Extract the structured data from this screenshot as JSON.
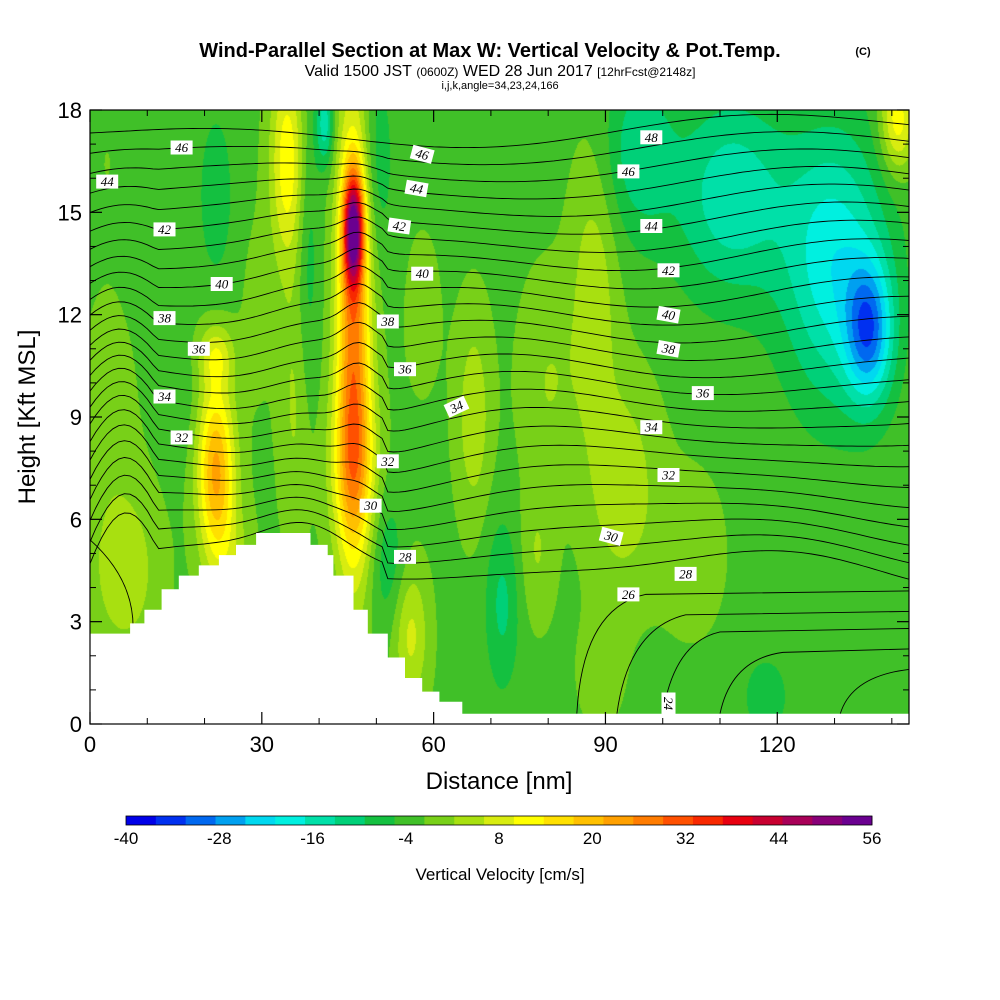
{
  "title": {
    "main": "Wind-Parallel Section at Max W: Vertical Velocity & Pot.Temp.",
    "copyright": "(C)",
    "valid_a": "Valid 1500 JST",
    "valid_b": "(0600Z)",
    "valid_c": "WED 28 Jun 2017",
    "valid_d": "[12hrFcst@2148z]",
    "grid_info": "i,j,k,angle=34,23,24,166"
  },
  "chart_data": {
    "type": "heatmap",
    "xlabel": "Distance [nm]",
    "ylabel": "Height [Kft MSL]",
    "xlim": [
      0,
      143
    ],
    "ylim": [
      0,
      18
    ],
    "x_ticks": [
      "0",
      "30",
      "60",
      "90",
      "120"
    ],
    "y_ticks": [
      "0",
      "3",
      "6",
      "9",
      "12",
      "15",
      "18"
    ],
    "colorbar": {
      "label": "Vertical Velocity [cm/s]",
      "ticks": [
        "-40",
        "-28",
        "-16",
        "-4",
        "8",
        "20",
        "32",
        "44",
        "56"
      ],
      "levels": [
        -40,
        -36,
        -32,
        -28,
        -24,
        -20,
        -16,
        -12,
        -8,
        -4,
        0,
        4,
        8,
        12,
        16,
        20,
        24,
        28,
        32,
        36,
        40,
        44,
        48,
        52,
        56
      ],
      "colors": [
        "#0000e8",
        "#0030f0",
        "#0068f0",
        "#00a0f0",
        "#00d8f0",
        "#00f0e0",
        "#00e0a8",
        "#00d078",
        "#14c040",
        "#40c028",
        "#78d018",
        "#a8e010",
        "#d8ec10",
        "#ffff00",
        "#ffe000",
        "#ffc000",
        "#ffa000",
        "#ff7c00",
        "#ff5000",
        "#f82800",
        "#e80010",
        "#c80030",
        "#a80058",
        "#880078",
        "#6a0090"
      ]
    },
    "w_cells": [
      {
        "x": 3,
        "z": 16.5,
        "sx": 6,
        "sz": 4,
        "w": 1
      },
      {
        "x": 3,
        "z": 9,
        "sx": 5,
        "sz": 3,
        "w": 3
      },
      {
        "x": 6,
        "z": 4.5,
        "sx": 6,
        "sz": 2.5,
        "w": 8
      },
      {
        "x": 14,
        "z": 15.5,
        "sx": 3,
        "sz": 4,
        "w": -2
      },
      {
        "x": 16,
        "z": 9.5,
        "sx": 3,
        "sz": 2,
        "w": -2
      },
      {
        "x": 22,
        "z": 7.4,
        "sx": 3.2,
        "sz": 2.6,
        "w": 26
      },
      {
        "x": 22,
        "z": 10.8,
        "sx": 3,
        "sz": 0.9,
        "w": 10
      },
      {
        "x": 22,
        "z": 15.5,
        "sx": 3,
        "sz": 2.5,
        "w": -6
      },
      {
        "x": 25,
        "z": 4.5,
        "sx": 3.5,
        "sz": 2,
        "w": 6
      },
      {
        "x": 29,
        "z": 12,
        "sx": 3,
        "sz": 3,
        "w": 2
      },
      {
        "x": 34.5,
        "z": 16.5,
        "sx": 3,
        "sz": 3,
        "w": 16
      },
      {
        "x": 36,
        "z": 9.5,
        "sx": 3,
        "sz": 4,
        "w": 6
      },
      {
        "x": 38,
        "z": 13.5,
        "sx": 2,
        "sz": 5,
        "w": -6
      },
      {
        "x": 41,
        "z": 17.6,
        "sx": 1.5,
        "sz": 1.2,
        "w": -14
      },
      {
        "x": 46,
        "z": 14.5,
        "sx": 1.7,
        "sz": 1.6,
        "w": 44
      },
      {
        "x": 46,
        "z": 11.5,
        "sx": 3,
        "sz": 6.5,
        "w": 30
      },
      {
        "x": 46,
        "z": 7.5,
        "sx": 4,
        "sz": 2.5,
        "w": 14
      },
      {
        "x": 52,
        "z": 4.8,
        "sx": 3,
        "sz": 2,
        "w": -6
      },
      {
        "x": 56,
        "z": 2.6,
        "sx": 3,
        "sz": 2,
        "w": 10
      },
      {
        "x": 50,
        "z": 16.5,
        "sx": 3,
        "sz": 3,
        "w": -6
      },
      {
        "x": 58,
        "z": 12,
        "sx": 4,
        "sz": 3,
        "w": 2
      },
      {
        "x": 67,
        "z": 9,
        "sx": 3,
        "sz": 3,
        "w": 8
      },
      {
        "x": 72,
        "z": 3.5,
        "sx": 3,
        "sz": 2.5,
        "w": -8
      },
      {
        "x": 80,
        "z": 10,
        "sx": 5,
        "sz": 3,
        "w": 5
      },
      {
        "x": 78,
        "z": 5,
        "sx": 3,
        "sz": 2,
        "w": 5
      },
      {
        "x": 88,
        "z": 12.5,
        "sx": 4,
        "sz": 4,
        "w": 8
      },
      {
        "x": 93,
        "z": 7,
        "sx": 6,
        "sz": 3,
        "w": 8
      },
      {
        "x": 89,
        "z": 1.5,
        "sx": 5,
        "sz": 2,
        "w": 2
      },
      {
        "x": 96,
        "z": 16.8,
        "sx": 6,
        "sz": 2.5,
        "w": -10
      },
      {
        "x": 112,
        "z": 15.5,
        "sx": 10,
        "sz": 3,
        "w": -14
      },
      {
        "x": 130,
        "z": 13.5,
        "sx": 9,
        "sz": 4,
        "w": -18
      },
      {
        "x": 136,
        "z": 11.5,
        "sx": 4,
        "sz": 2,
        "w": -24
      },
      {
        "x": 105,
        "z": 5,
        "sx": 6,
        "sz": 2.5,
        "w": 3
      },
      {
        "x": 118,
        "z": 0.8,
        "sx": 4,
        "sz": 1.2,
        "w": -6
      },
      {
        "x": 141,
        "z": 17.7,
        "sx": 3,
        "sz": 1.5,
        "w": 16
      }
    ],
    "w_background": -1,
    "terrain": [
      [
        0,
        2.65
      ],
      [
        7,
        2.65
      ],
      [
        7,
        2.95
      ],
      [
        9.5,
        2.95
      ],
      [
        9.5,
        3.35
      ],
      [
        12.5,
        3.35
      ],
      [
        12.5,
        3.95
      ],
      [
        15.5,
        3.95
      ],
      [
        15.5,
        4.35
      ],
      [
        19,
        4.35
      ],
      [
        19,
        4.65
      ],
      [
        22.5,
        4.65
      ],
      [
        22.5,
        4.95
      ],
      [
        25.5,
        4.95
      ],
      [
        25.5,
        5.25
      ],
      [
        29,
        5.25
      ],
      [
        29,
        5.6
      ],
      [
        38.5,
        5.6
      ],
      [
        38.5,
        5.25
      ],
      [
        41.5,
        5.25
      ],
      [
        41.5,
        4.95
      ],
      [
        42.5,
        4.95
      ],
      [
        42.5,
        4.35
      ],
      [
        46,
        4.35
      ],
      [
        46,
        3.35
      ],
      [
        48.5,
        3.35
      ],
      [
        48.5,
        2.65
      ],
      [
        52,
        2.65
      ],
      [
        52,
        1.95
      ],
      [
        55,
        1.95
      ],
      [
        55,
        1.35
      ],
      [
        58,
        1.35
      ],
      [
        58,
        0.95
      ],
      [
        61,
        0.95
      ],
      [
        61,
        0.65
      ],
      [
        65,
        0.65
      ],
      [
        65,
        0.3
      ],
      [
        143,
        0.3
      ]
    ],
    "theta_contours": {
      "levels": [
        24,
        25,
        26,
        27,
        28,
        29,
        30,
        31,
        32,
        33,
        34,
        35,
        36,
        37,
        38,
        39,
        40,
        41,
        42,
        43,
        44,
        45,
        46,
        47,
        48
      ],
      "labels": [
        {
          "text": "46",
          "x": 16,
          "z": 16.9,
          "angle": 0
        },
        {
          "text": "44",
          "x": 3,
          "z": 15.9,
          "angle": 0
        },
        {
          "text": "42",
          "x": 13,
          "z": 14.5,
          "angle": 0
        },
        {
          "text": "40",
          "x": 23,
          "z": 12.9,
          "angle": 0
        },
        {
          "text": "38",
          "x": 13,
          "z": 11.9,
          "angle": 0
        },
        {
          "text": "36",
          "x": 19,
          "z": 11.0,
          "angle": 0
        },
        {
          "text": "34",
          "x": 13,
          "z": 9.6,
          "angle": 0
        },
        {
          "text": "32",
          "x": 16,
          "z": 8.4,
          "angle": 0
        },
        {
          "text": "46",
          "x": 58,
          "z": 16.7,
          "angle": 15
        },
        {
          "text": "44",
          "x": 57,
          "z": 15.7,
          "angle": 10
        },
        {
          "text": "42",
          "x": 54,
          "z": 14.6,
          "angle": 8
        },
        {
          "text": "40",
          "x": 58,
          "z": 13.2,
          "angle": 0
        },
        {
          "text": "38",
          "x": 52,
          "z": 11.8,
          "angle": 0
        },
        {
          "text": "36",
          "x": 55,
          "z": 10.4,
          "angle": 0
        },
        {
          "text": "34",
          "x": 64,
          "z": 9.3,
          "angle": -25
        },
        {
          "text": "32",
          "x": 52,
          "z": 7.7,
          "angle": 0
        },
        {
          "text": "30",
          "x": 49,
          "z": 6.4,
          "angle": 0
        },
        {
          "text": "28",
          "x": 55,
          "z": 4.9,
          "angle": 0
        },
        {
          "text": "48",
          "x": 98,
          "z": 17.2,
          "angle": 0
        },
        {
          "text": "46",
          "x": 94,
          "z": 16.2,
          "angle": 0
        },
        {
          "text": "44",
          "x": 98,
          "z": 14.6,
          "angle": 0
        },
        {
          "text": "42",
          "x": 101,
          "z": 13.3,
          "angle": 0
        },
        {
          "text": "40",
          "x": 101,
          "z": 12.0,
          "angle": 10
        },
        {
          "text": "38",
          "x": 101,
          "z": 11.0,
          "angle": 10
        },
        {
          "text": "36",
          "x": 107,
          "z": 9.7,
          "angle": 0
        },
        {
          "text": "34",
          "x": 98,
          "z": 8.7,
          "angle": 0
        },
        {
          "text": "32",
          "x": 101,
          "z": 7.3,
          "angle": 0
        },
        {
          "text": "30",
          "x": 91,
          "z": 5.5,
          "angle": 15
        },
        {
          "text": "28",
          "x": 104,
          "z": 4.4,
          "angle": 0
        },
        {
          "text": "26",
          "x": 94,
          "z": 3.8,
          "angle": 0
        },
        {
          "text": "24",
          "x": 101,
          "z": 0.6,
          "angle": 90
        }
      ]
    }
  }
}
